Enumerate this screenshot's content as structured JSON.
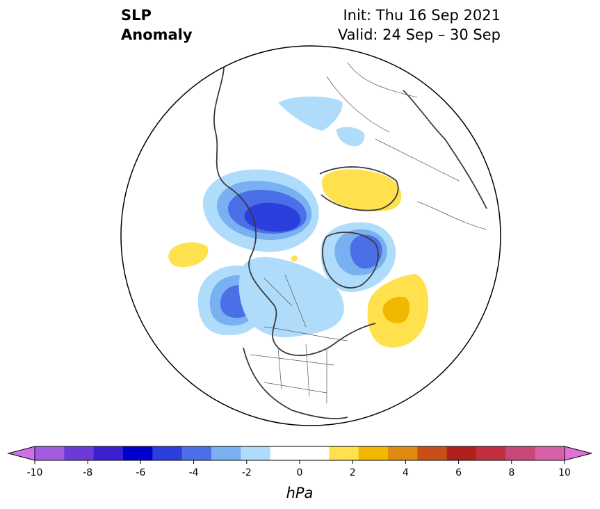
{
  "title": {
    "line1": "SLP",
    "line2": "Anomaly"
  },
  "subtitle": {
    "init": "Init: Thu 16 Sep 2021",
    "valid": "Valid: 24 Sep – 30 Sep"
  },
  "colorbar": {
    "unit": "hPa",
    "ticks": [
      "-10",
      "-8",
      "-6",
      "-4",
      "-2",
      "0",
      "2",
      "4",
      "6",
      "8",
      "10"
    ],
    "colors": [
      "#a25ce0",
      "#6b3ad8",
      "#3c1fd0",
      "#0000cc",
      "#2a3fdc",
      "#4a6fe6",
      "#79b0f2",
      "#aedcfa",
      "#ffffff",
      "#ffffff",
      "#ffe14d",
      "#f2b800",
      "#e08a10",
      "#c85018",
      "#b0201c",
      "#c03040",
      "#c8487a",
      "#d860a8"
    ],
    "min_color": "#d070e8",
    "max_color": "#e070d8"
  },
  "map": {
    "projection": "north-polar-stereographic",
    "anomalies": [
      {
        "name": "aleutian-low",
        "sign": "negative",
        "peak_hpa": -6
      },
      {
        "name": "gulf-of-alaska-low",
        "sign": "negative",
        "peak_hpa": -4
      },
      {
        "name": "canada-trough",
        "sign": "negative",
        "peak_hpa": -2
      },
      {
        "name": "greenland-low",
        "sign": "negative",
        "peak_hpa": -4
      },
      {
        "name": "arctic-low",
        "sign": "negative",
        "peak_hpa": -2
      },
      {
        "name": "siberian-high",
        "sign": "positive",
        "peak_hpa": 2
      },
      {
        "name": "north-atlantic-high",
        "sign": "positive",
        "peak_hpa": 3
      },
      {
        "name": "pacific-high",
        "sign": "positive",
        "peak_hpa": 2
      }
    ]
  }
}
